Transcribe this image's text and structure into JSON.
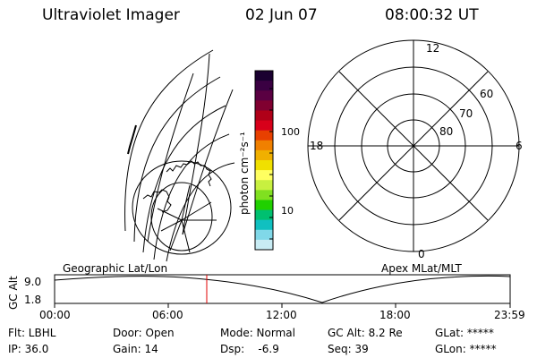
{
  "header": {
    "instrument": "Ultraviolet Imager",
    "date": "02 Jun 07",
    "time": "08:00:32 UT"
  },
  "colorbar": {
    "unit_label": "photon cm⁻²s⁻¹",
    "ticks": [
      "100",
      "10"
    ],
    "colors": [
      "#1a0030",
      "#3a0042",
      "#5a0042",
      "#800030",
      "#b00018",
      "#d8001a",
      "#e84000",
      "#f08000",
      "#f0b000",
      "#f0e000",
      "#ffff60",
      "#c8f040",
      "#80e020",
      "#20d000",
      "#00c070",
      "#10c0c0",
      "#80d8e8",
      "#c8ecf4"
    ]
  },
  "left_map": {
    "label": "Geographic Lat/Lon"
  },
  "right_map": {
    "label": "Apex MLat/MLT",
    "mlt_labels": [
      "12",
      "6",
      "0",
      "18"
    ],
    "lat_labels": [
      "60",
      "70",
      "80"
    ]
  },
  "timeline": {
    "axis_label": "GC Alt",
    "y_ticks": [
      "9.0",
      "1.8"
    ],
    "x_ticks": [
      "00:00",
      "06:00",
      "12:00",
      "18:00",
      "23:59"
    ],
    "marker_color": "#e00000",
    "marker_time": "08:00:32"
  },
  "status": {
    "flt": "Flt: LBHL",
    "ip": "IP: 36.0",
    "door": "Door: Open",
    "gain": "Gain: 14",
    "mode": "Mode: Normal",
    "dsp": "Dsp:    -6.9",
    "gc_alt": "GC Alt: 8.2 Re",
    "seq": "Seq: 39",
    "glat": "GLat: *****",
    "glon": "GLon: *****"
  }
}
